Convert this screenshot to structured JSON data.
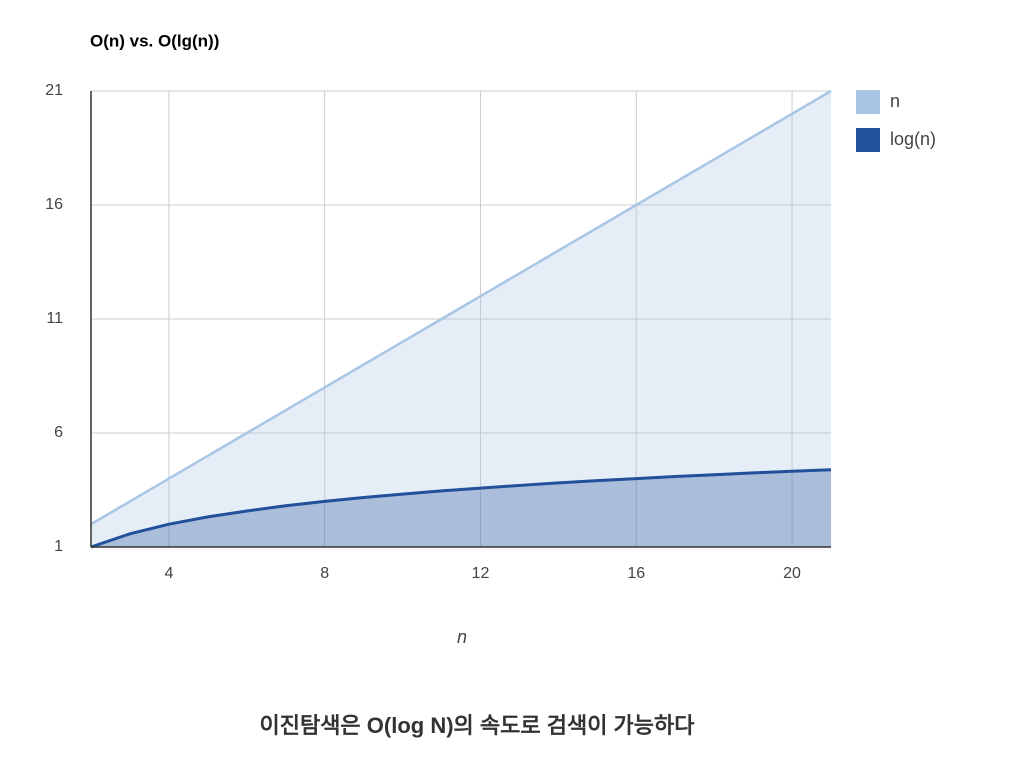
{
  "chart_data": {
    "type": "area",
    "title": "O(n) vs. O(lg(n))",
    "x_label": "n",
    "x": [
      2,
      3,
      4,
      5,
      6,
      7,
      8,
      9,
      10,
      11,
      12,
      13,
      14,
      15,
      16,
      17,
      18,
      19,
      20,
      21
    ],
    "series": [
      {
        "name": "n",
        "color": "#a8c5e6",
        "values": [
          2,
          3,
          4,
          5,
          6,
          7,
          8,
          9,
          10,
          11,
          12,
          13,
          14,
          15,
          16,
          17,
          18,
          19,
          20,
          21
        ]
      },
      {
        "name": "log(n)",
        "color": "#22509a",
        "values": [
          1,
          1.58,
          2,
          2.32,
          2.58,
          2.81,
          3,
          3.17,
          3.32,
          3.46,
          3.58,
          3.7,
          3.81,
          3.91,
          4,
          4.09,
          4.17,
          4.25,
          4.32,
          4.39
        ]
      }
    ],
    "xlim": [
      2,
      21
    ],
    "xticks": [
      4,
      8,
      12,
      16,
      20
    ],
    "ylim": [
      1,
      21
    ],
    "yticks": [
      1,
      6,
      11,
      16,
      21
    ],
    "grid": true,
    "legend": "right"
  },
  "caption": "이진탐색은 O(log N)의 속도로 검색이 가능하다"
}
